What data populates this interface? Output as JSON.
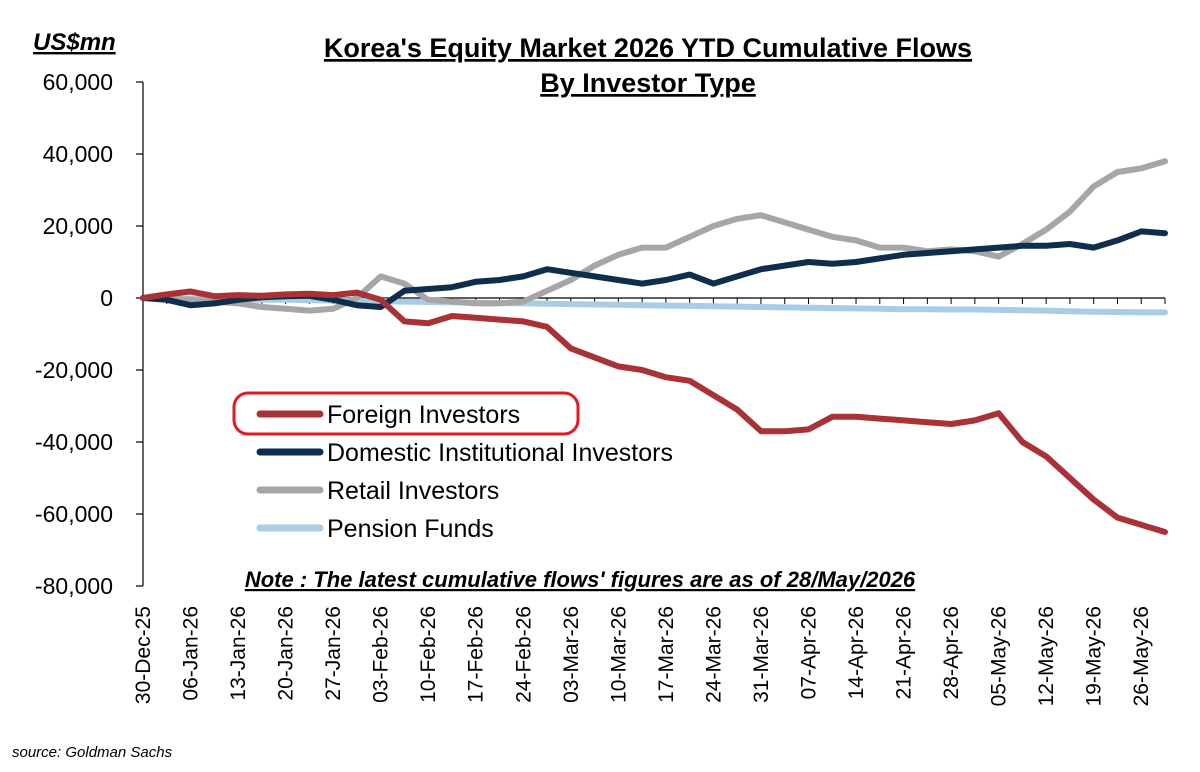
{
  "chart_data": {
    "type": "line",
    "title": "Korea's Equity Market 2026 YTD Cumulative Flows",
    "subtitle": "By Investor Type",
    "ylabel": "US$mn",
    "xlabel": "",
    "ylim": [
      -80000,
      60000
    ],
    "yticks": [
      "60,000",
      "40,000",
      "20,000",
      "0",
      "-20,000",
      "-40,000",
      "-60,000",
      "-80,000"
    ],
    "ytick_values": [
      60000,
      40000,
      20000,
      0,
      -20000,
      -40000,
      -60000,
      -80000
    ],
    "x_tick_labels": [
      "30-Dec-25",
      "06-Jan-26",
      "13-Jan-26",
      "20-Jan-26",
      "27-Jan-26",
      "03-Feb-26",
      "10-Feb-26",
      "17-Feb-26",
      "24-Feb-26",
      "03-Mar-26",
      "10-Mar-26",
      "17-Mar-26",
      "24-Mar-26",
      "31-Mar-26",
      "07-Apr-26",
      "14-Apr-26",
      "21-Apr-26",
      "28-Apr-26",
      "05-May-26",
      "12-May-26",
      "19-May-26",
      "26-May-26"
    ],
    "x": [
      "30-Dec-25",
      "02-Jan-26",
      "06-Jan-26",
      "09-Jan-26",
      "13-Jan-26",
      "16-Jan-26",
      "20-Jan-26",
      "23-Jan-26",
      "27-Jan-26",
      "30-Jan-26",
      "03-Feb-26",
      "06-Feb-26",
      "10-Feb-26",
      "13-Feb-26",
      "17-Feb-26",
      "20-Feb-26",
      "24-Feb-26",
      "27-Feb-26",
      "03-Mar-26",
      "06-Mar-26",
      "10-Mar-26",
      "13-Mar-26",
      "17-Mar-26",
      "20-Mar-26",
      "24-Mar-26",
      "27-Mar-26",
      "31-Mar-26",
      "03-Apr-26",
      "07-Apr-26",
      "10-Apr-26",
      "14-Apr-26",
      "17-Apr-26",
      "21-Apr-26",
      "24-Apr-26",
      "28-Apr-26",
      "01-May-26",
      "05-May-26",
      "08-May-26",
      "12-May-26",
      "15-May-26",
      "19-May-26",
      "22-May-26",
      "26-May-26",
      "28-May-26"
    ],
    "series": [
      {
        "name": "Foreign Investors",
        "color": "#a83236",
        "values": [
          0,
          1000,
          1800,
          500,
          800,
          600,
          1000,
          1200,
          800,
          1500,
          -500,
          -6500,
          -7000,
          -5000,
          -5500,
          -6000,
          -6500,
          -8000,
          -14000,
          -16500,
          -19000,
          -20000,
          -22000,
          -23000,
          -27000,
          -31000,
          -37000,
          -37000,
          -36500,
          -33000,
          -33000,
          -33500,
          -34000,
          -34500,
          -35000,
          -34000,
          -32000,
          -40000,
          -44000,
          -50000,
          -56000,
          -61000,
          -63000,
          -65000
        ]
      },
      {
        "name": "Domestic Institutional Investors",
        "color": "#0f2d4c",
        "values": [
          0,
          -500,
          -2000,
          -1500,
          -500,
          200,
          500,
          600,
          -500,
          -2000,
          -2500,
          2000,
          2500,
          3000,
          4500,
          5000,
          6000,
          8000,
          7000,
          6000,
          5000,
          4000,
          5000,
          6500,
          4000,
          6000,
          8000,
          9000,
          10000,
          9500,
          10000,
          11000,
          12000,
          12500,
          13000,
          13500,
          14000,
          14500,
          14500,
          15000,
          14000,
          16000,
          18500,
          18000
        ]
      },
      {
        "name": "Retail Investors",
        "color": "#a6a6a6",
        "values": [
          0,
          -200,
          -500,
          -1000,
          -1500,
          -2500,
          -3000,
          -3500,
          -3000,
          0,
          6000,
          4000,
          -500,
          -1000,
          -1500,
          -1500,
          -1000,
          2000,
          5000,
          9000,
          12000,
          14000,
          14000,
          17000,
          20000,
          22000,
          23000,
          21000,
          19000,
          17000,
          16000,
          14000,
          14000,
          13000,
          13500,
          13000,
          11500,
          15000,
          19000,
          24000,
          31000,
          35000,
          36000,
          38000
        ]
      },
      {
        "name": "Pension Funds",
        "color": "#a9cde6",
        "values": [
          0,
          -100,
          -200,
          -300,
          -400,
          -500,
          -500,
          -600,
          -700,
          -800,
          -900,
          -1000,
          -1100,
          -1200,
          -1300,
          -1400,
          -1500,
          -1600,
          -1700,
          -1800,
          -1900,
          -2000,
          -2100,
          -2200,
          -2300,
          -2400,
          -2500,
          -2600,
          -2700,
          -2800,
          -2900,
          -3000,
          -3100,
          -3100,
          -3200,
          -3200,
          -3300,
          -3400,
          -3500,
          -3700,
          -3800,
          -3900,
          -4000,
          -4000
        ]
      }
    ],
    "legend_position": "lower-left",
    "highlighted_legend_entry": "Foreign Investors",
    "highlight_color": "#e21b23",
    "grid": false,
    "note": "Note : The latest cumulative flows' figures are as of 28/May/2026",
    "source": "source: Goldman Sachs"
  }
}
